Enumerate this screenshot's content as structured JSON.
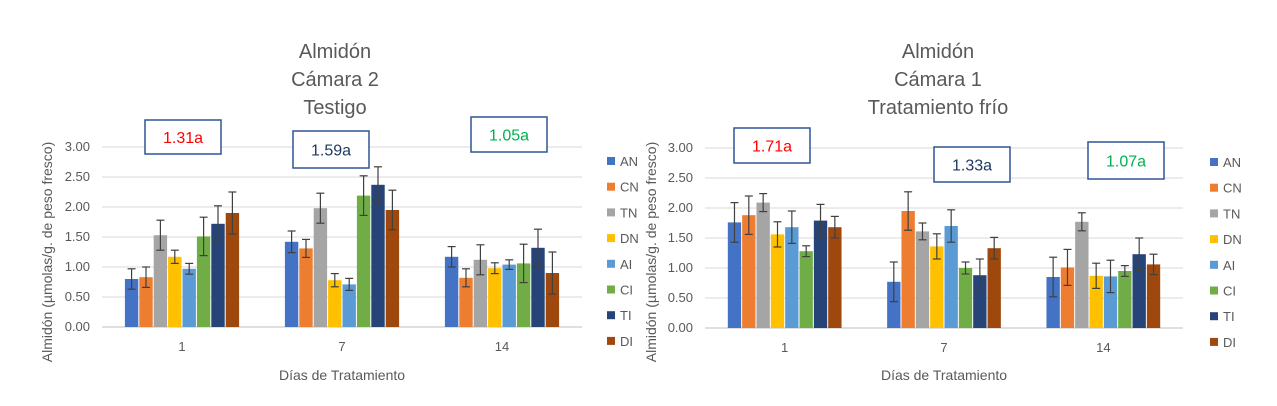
{
  "chart_data": [
    {
      "type": "bar",
      "title": [
        "Almidón",
        "Cámara 2",
        "Testigo"
      ],
      "xlabel": "Días de Tratamiento",
      "ylabel": "Almidón (µmolas/g. de peso fresco)",
      "ylim": [
        0,
        3
      ],
      "yticks": [
        "0.00",
        "0.50",
        "1.00",
        "1.50",
        "2.00",
        "2.50",
        "3.00"
      ],
      "categories": [
        "1",
        "7",
        "14"
      ],
      "series": [
        {
          "name": "AN",
          "color": "#4472C4",
          "values": [
            0.8,
            1.42,
            1.17
          ],
          "errors": [
            0.17,
            0.18,
            0.17
          ]
        },
        {
          "name": "CN",
          "color": "#ED7D31",
          "values": [
            0.83,
            1.31,
            0.82
          ],
          "errors": [
            0.17,
            0.15,
            0.15
          ]
        },
        {
          "name": "TN",
          "color": "#A5A5A5",
          "values": [
            1.53,
            1.98,
            1.12
          ],
          "errors": [
            0.25,
            0.25,
            0.25
          ]
        },
        {
          "name": "DN",
          "color": "#FFC000",
          "values": [
            1.17,
            0.78,
            0.98
          ],
          "errors": [
            0.11,
            0.11,
            0.09
          ]
        },
        {
          "name": "AI",
          "color": "#5B9BD5",
          "values": [
            0.97,
            0.71,
            1.04
          ],
          "errors": [
            0.09,
            0.1,
            0.08
          ]
        },
        {
          "name": "CI",
          "color": "#70AD47",
          "values": [
            1.51,
            2.19,
            1.06
          ],
          "errors": [
            0.32,
            0.33,
            0.32
          ]
        },
        {
          "name": "TI",
          "color": "#264478",
          "values": [
            1.72,
            2.37,
            1.32
          ],
          "errors": [
            0.3,
            0.3,
            0.31
          ]
        },
        {
          "name": "DI",
          "color": "#9E480E",
          "values": [
            1.9,
            1.95,
            0.9
          ],
          "errors": [
            0.35,
            0.33,
            0.35
          ]
        }
      ],
      "annotations": [
        {
          "text": "1.31a",
          "color": "#FF0000",
          "category": "1"
        },
        {
          "text": "1.59a",
          "color": "#1F3864",
          "category": "7"
        },
        {
          "text": "1.05a",
          "color": "#00B050",
          "category": "14"
        }
      ],
      "legend": "right"
    },
    {
      "type": "bar",
      "title": [
        "Almidón",
        "Cámara 1",
        "Tratamiento frío"
      ],
      "xlabel": "Días de Tratamiento",
      "ylabel": "Almidón (µmolas/g. de peso fresco)",
      "ylim": [
        0,
        3
      ],
      "yticks": [
        "0.00",
        "0.50",
        "1.00",
        "1.50",
        "2.00",
        "2.50",
        "3.00"
      ],
      "categories": [
        "1",
        "7",
        "14"
      ],
      "series": [
        {
          "name": "AN",
          "color": "#4472C4",
          "values": [
            1.76,
            0.77,
            0.85
          ],
          "errors": [
            0.33,
            0.33,
            0.33
          ]
        },
        {
          "name": "CN",
          "color": "#ED7D31",
          "values": [
            1.88,
            1.95,
            1.01
          ],
          "errors": [
            0.32,
            0.32,
            0.3
          ]
        },
        {
          "name": "TN",
          "color": "#A5A5A5",
          "values": [
            2.09,
            1.61,
            1.77
          ],
          "errors": [
            0.15,
            0.14,
            0.15
          ]
        },
        {
          "name": "DN",
          "color": "#FFC000",
          "values": [
            1.56,
            1.36,
            0.87
          ],
          "errors": [
            0.21,
            0.21,
            0.21
          ]
        },
        {
          "name": "AI",
          "color": "#5B9BD5",
          "values": [
            1.68,
            1.7,
            0.86
          ],
          "errors": [
            0.27,
            0.27,
            0.27
          ]
        },
        {
          "name": "CI",
          "color": "#70AD47",
          "values": [
            1.28,
            1.0,
            0.95
          ],
          "errors": [
            0.09,
            0.1,
            0.09
          ]
        },
        {
          "name": "TI",
          "color": "#264478",
          "values": [
            1.79,
            0.88,
            1.23
          ],
          "errors": [
            0.27,
            0.27,
            0.27
          ]
        },
        {
          "name": "DI",
          "color": "#9E480E",
          "values": [
            1.68,
            1.33,
            1.06
          ],
          "errors": [
            0.18,
            0.18,
            0.17
          ]
        }
      ],
      "annotations": [
        {
          "text": "1.71a",
          "color": "#FF0000",
          "category": "1"
        },
        {
          "text": "1.33a",
          "color": "#1F3864",
          "category": "7"
        },
        {
          "text": "1.07a",
          "color": "#00B050",
          "category": "14"
        }
      ],
      "legend": "right"
    }
  ]
}
